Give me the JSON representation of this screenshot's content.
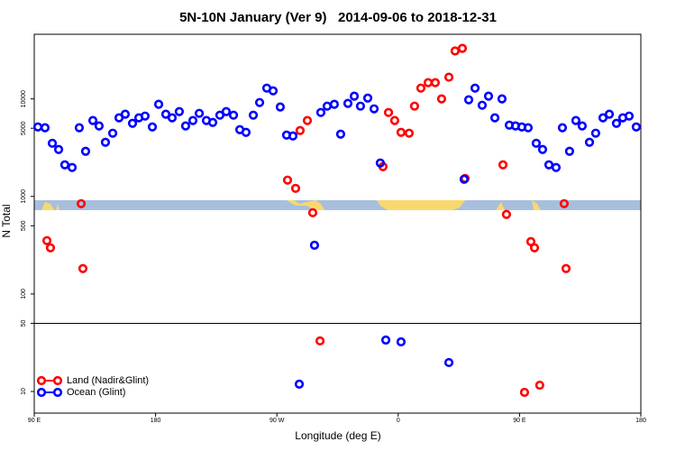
{
  "chart_data": {
    "type": "scatter",
    "title": "5N-10N January (Ver 9)   2014-09-06 to 2018-12-31",
    "x_label": "Longitude (deg E)",
    "y_label": "N Total",
    "xlim": [
      90,
      540
    ],
    "xticks": [
      {
        "value": 90,
        "label": "90 E"
      },
      180,
      {
        "value": 270,
        "label": "90 W"
      },
      {
        "value": 360,
        "label": "0"
      },
      {
        "value": 450,
        "label": "90 E"
      },
      {
        "value": 540,
        "label": "180"
      }
    ],
    "ylim": [
      6,
      46000
    ],
    "y_log": true,
    "yticks": [
      10,
      50,
      100,
      500,
      1000,
      5000,
      10000
    ],
    "legend": "bottom-left",
    "series": [
      {
        "name": "Land (Nadir&Glint)",
        "color": "#ff0000",
        "x": [
          99.4,
          102.0,
          124.8,
          126.1,
          277.9,
          283.9,
          287.2,
          292.6,
          296.6,
          302.0,
          348.7,
          352.8,
          357.4,
          362.1,
          368.1,
          372.1,
          376.8,
          382.2,
          387.5,
          392.2,
          397.6,
          402.2,
          407.6,
          409.6,
          437.7,
          440.3,
          453.7,
          458.4,
          461.1,
          465.0,
          483.1,
          484.5
        ],
        "values": [
          352,
          297,
          843,
          182,
          1470,
          1210,
          4740,
          6000,
          681,
          33,
          2020,
          7260,
          6000,
          4540,
          4450,
          8430,
          12900,
          14680,
          14680,
          10000,
          16700,
          31000,
          33000,
          1530,
          2110,
          653,
          9.8,
          344,
          297,
          11.6,
          843,
          182
        ]
      },
      {
        "name": "Ocean (Glint)",
        "color": "#0000ff",
        "x": [
          92.7,
          98.0,
          103.4,
          108.1,
          112.7,
          118.1,
          123.4,
          128.1,
          133.5,
          138.1,
          142.8,
          148.2,
          152.9,
          157.5,
          162.9,
          167.6,
          172.2,
          177.6,
          182.3,
          187.6,
          192.3,
          197.6,
          202.3,
          207.7,
          212.4,
          217.7,
          222.4,
          227.7,
          232.4,
          237.8,
          242.5,
          247.1,
          252.5,
          257.2,
          262.5,
          267.2,
          272.5,
          277.2,
          281.9,
          286.6,
          297.9,
          302.6,
          307.3,
          312.6,
          317.3,
          322.7,
          327.4,
          332.0,
          337.4,
          342.1,
          346.7,
          350.8,
          362.1,
          397.6,
          408.9,
          412.3,
          417.0,
          422.3,
          427.0,
          431.7,
          437.0,
          442.4,
          447.0,
          451.7,
          456.4,
          462.4,
          467.1,
          471.8,
          477.1,
          481.8,
          487.1,
          491.8,
          496.5,
          501.9,
          506.5,
          511.9,
          516.6,
          521.9,
          526.6,
          531.3,
          536.6
        ],
        "values": [
          5160,
          5060,
          3510,
          3030,
          2110,
          1980,
          5060,
          2900,
          6000,
          5280,
          3590,
          4450,
          6400,
          6970,
          5620,
          6400,
          6670,
          5160,
          8800,
          6970,
          6400,
          7410,
          5280,
          6000,
          7110,
          6000,
          5740,
          6810,
          7410,
          6810,
          4840,
          4540,
          6810,
          9180,
          12900,
          12100,
          8260,
          4260,
          4170,
          11.9,
          316,
          7260,
          8430,
          8800,
          4350,
          8990,
          10660,
          8430,
          10200,
          7910,
          2200,
          33.7,
          32.3,
          19.8,
          1500,
          9790,
          12900,
          8610,
          10660,
          6400,
          10000,
          5380,
          5280,
          5160,
          5060,
          3510,
          3030,
          2110,
          1980,
          5060,
          2900,
          6000,
          5280,
          3590,
          4450,
          6400,
          6970,
          5620,
          6400,
          6670,
          5160
        ]
      }
    ]
  }
}
